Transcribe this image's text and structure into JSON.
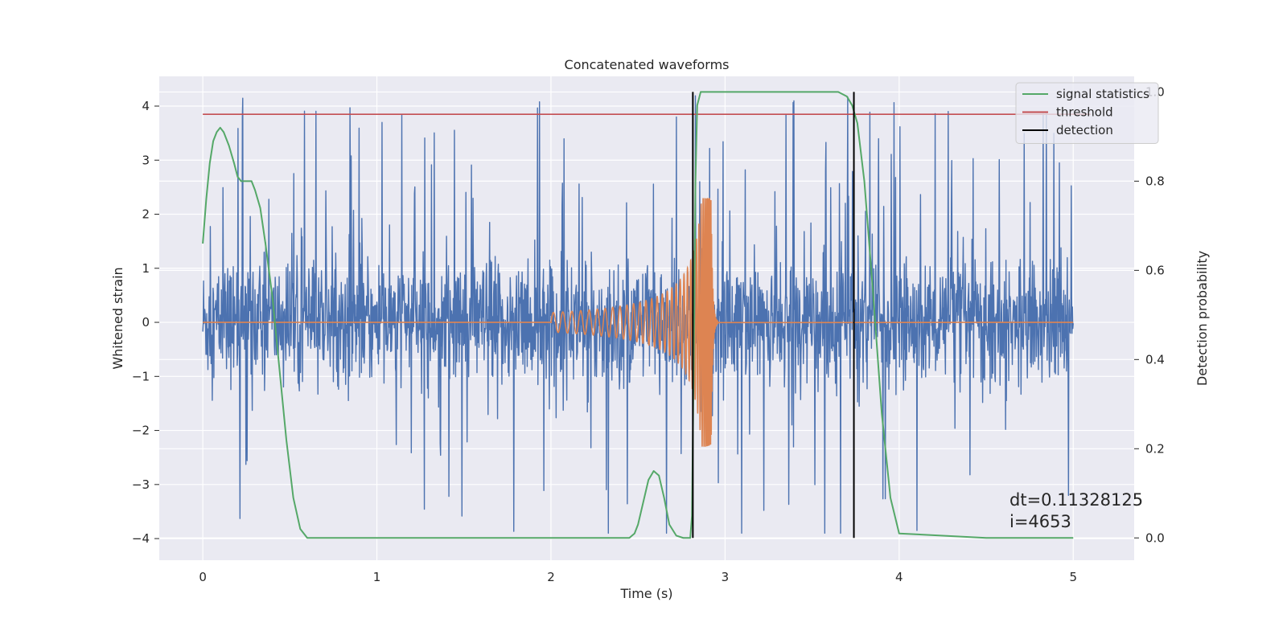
{
  "chart_data": {
    "type": "line",
    "title": "Concatenated waveforms",
    "xlabel": "Time (s)",
    "ylabel_left": "Whitened strain",
    "ylabel_right": "Detection probability",
    "xlim": [
      -0.25,
      5.35
    ],
    "ylim_left": [
      -4.4,
      4.55
    ],
    "ylim_right": [
      -0.05,
      1.035
    ],
    "xticks": [
      0,
      1,
      2,
      3,
      4,
      5
    ],
    "yticks_left": [
      -4,
      -3,
      -2,
      -1,
      0,
      1,
      2,
      3,
      4
    ],
    "yticks_right": [
      0.0,
      0.2,
      0.4,
      0.6,
      0.8,
      1.0
    ],
    "xtick_labels": [
      "0",
      "1",
      "2",
      "3",
      "4",
      "5"
    ],
    "ytick_labels_left": [
      "−4",
      "−3",
      "−2",
      "−1",
      "0",
      "1",
      "2",
      "3",
      "4"
    ],
    "ytick_labels_right": [
      "0.0",
      "0.2",
      "0.4",
      "0.6",
      "0.8",
      "1.0"
    ],
    "grid": true,
    "legend_position": "top-right",
    "legend": [
      {
        "label": "signal statistics",
        "color": "#55a868"
      },
      {
        "label": "threshold",
        "color": "#c44e52"
      },
      {
        "label": "detection",
        "color": "#000000"
      }
    ],
    "series": [
      {
        "name": "signal statistics",
        "axis": "right",
        "color": "#55a868",
        "x": [
          0.0,
          0.02,
          0.04,
          0.06,
          0.08,
          0.1,
          0.12,
          0.15,
          0.18,
          0.2,
          0.22,
          0.25,
          0.28,
          0.3,
          0.33,
          0.36,
          0.4,
          0.44,
          0.48,
          0.52,
          0.56,
          0.6,
          1.0,
          2.0,
          2.45,
          2.48,
          2.5,
          2.53,
          2.56,
          2.59,
          2.62,
          2.65,
          2.68,
          2.72,
          2.76,
          2.8,
          2.81,
          2.82,
          2.83,
          2.84,
          2.86,
          3.0,
          3.5,
          3.65,
          3.7,
          3.73,
          3.76,
          3.8,
          3.85,
          3.9,
          3.95,
          4.0,
          4.5,
          5.0
        ],
        "y": [
          0.66,
          0.76,
          0.84,
          0.89,
          0.91,
          0.92,
          0.91,
          0.88,
          0.84,
          0.81,
          0.8,
          0.8,
          0.8,
          0.78,
          0.74,
          0.66,
          0.54,
          0.38,
          0.22,
          0.09,
          0.02,
          0.0,
          0.0,
          0.0,
          0.0,
          0.01,
          0.03,
          0.08,
          0.13,
          0.15,
          0.14,
          0.09,
          0.03,
          0.005,
          0.0,
          0.0,
          0.05,
          0.4,
          0.8,
          0.97,
          1.0,
          1.0,
          1.0,
          1.0,
          0.99,
          0.97,
          0.93,
          0.8,
          0.55,
          0.28,
          0.09,
          0.01,
          0.0,
          0.0
        ]
      },
      {
        "name": "threshold",
        "axis": "right",
        "color": "#c44e52",
        "x": [
          0,
          5.1
        ],
        "y": [
          0.95,
          0.95
        ]
      },
      {
        "name": "detection",
        "axis": "right",
        "color": "#000000",
        "x_lines": [
          2.815,
          3.74
        ],
        "y": [
          0.0,
          1.0
        ]
      },
      {
        "name": "noisy strain",
        "axis": "left",
        "color": "#4c72b0",
        "x_range": [
          0,
          5
        ],
        "typical_abs_max": 1.5,
        "peak_max": 4.2,
        "peak_min": -3.9
      },
      {
        "name": "injected waveform",
        "axis": "left",
        "color": "#dd8452",
        "start": 2.0,
        "merger": 2.92,
        "end": 2.96,
        "peak_amplitude": 2.3
      }
    ],
    "annotation": {
      "lines": [
        "dt=0.11328125",
        " i=4653"
      ],
      "x": 4.5,
      "y": -3.0
    }
  }
}
